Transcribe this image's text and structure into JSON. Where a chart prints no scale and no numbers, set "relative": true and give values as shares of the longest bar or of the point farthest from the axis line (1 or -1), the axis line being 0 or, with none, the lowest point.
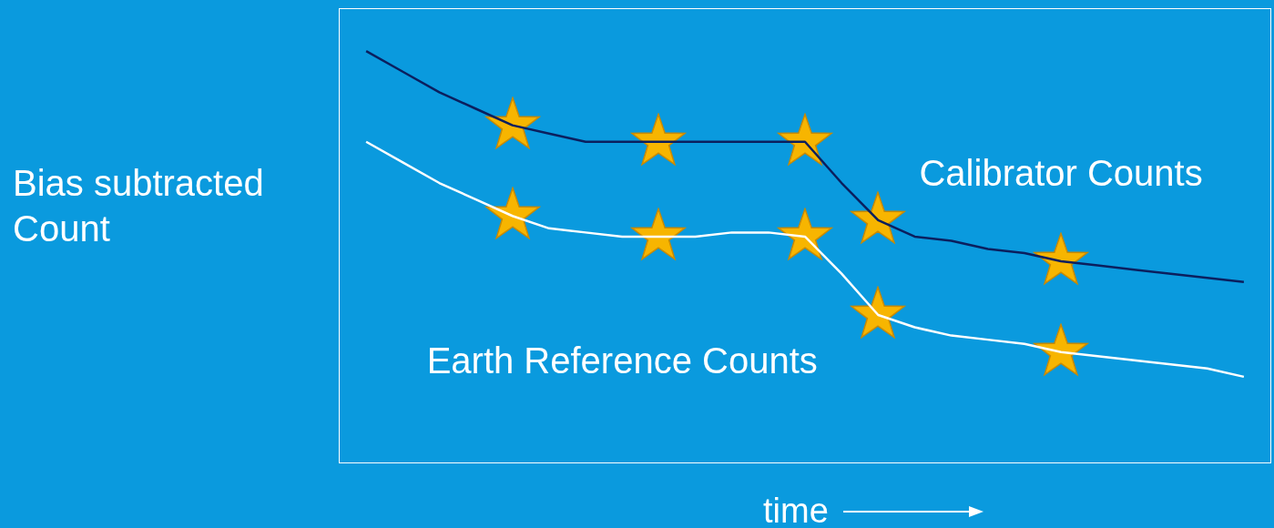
{
  "chart_data": {
    "type": "line",
    "relative": true,
    "ylabel": "Bias subtracted Count",
    "xlabel": "time",
    "tick_labels": false,
    "categories": [
      null,
      null,
      null,
      null,
      null,
      null,
      null,
      null,
      null,
      null,
      null,
      null,
      null,
      null,
      null,
      null,
      null,
      null,
      null,
      null,
      null,
      null,
      null,
      null,
      null
    ],
    "series": [
      {
        "name": "Calibrator Counts",
        "color": "#0b1f5e",
        "values": [
          1.0,
          0.95,
          0.9,
          0.86,
          0.82,
          0.8,
          0.78,
          0.78,
          0.78,
          0.78,
          0.78,
          0.78,
          0.78,
          0.68,
          0.59,
          0.55,
          0.54,
          0.52,
          0.51,
          0.49,
          0.48,
          0.47,
          0.46,
          0.45,
          0.44
        ]
      },
      {
        "name": "Earth Reference Counts",
        "color": "#ffffff",
        "values": [
          0.78,
          0.73,
          0.68,
          0.64,
          0.6,
          0.57,
          0.56,
          0.55,
          0.55,
          0.55,
          0.56,
          0.56,
          0.55,
          0.46,
          0.36,
          0.33,
          0.31,
          0.3,
          0.29,
          0.27,
          0.26,
          0.25,
          0.24,
          0.23,
          0.21
        ]
      }
    ]
  }
}
